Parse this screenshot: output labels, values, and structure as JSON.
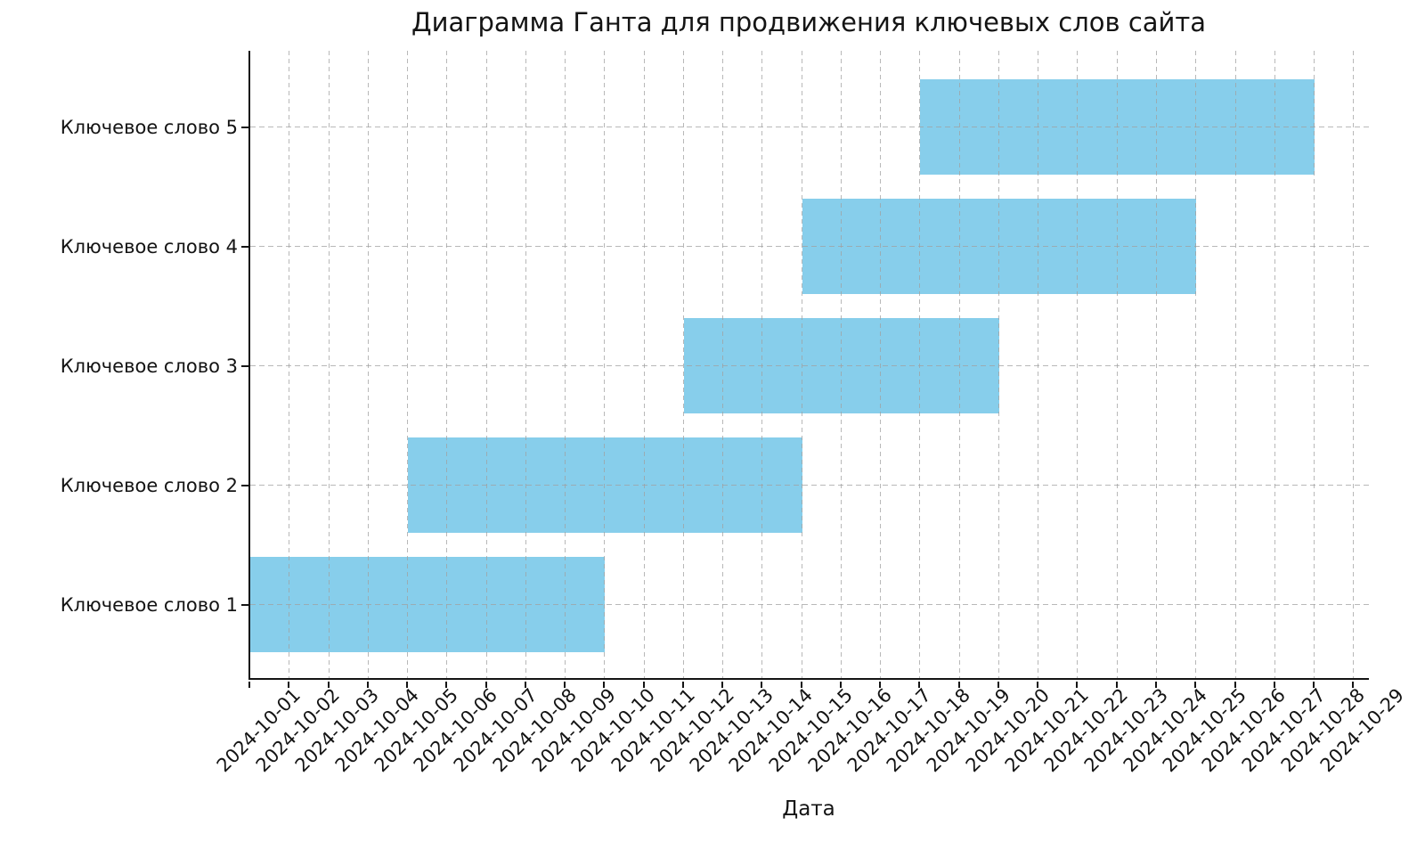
{
  "chart_data": {
    "type": "bar",
    "variant": "gantt-horizontal",
    "title": "Диаграмма Ганта для продвижения ключевых слов сайта",
    "xlabel": "Дата",
    "bar_color": "#87CEEB",
    "grid_color": "#b3b3b3",
    "axis_color": "#141414",
    "grid_style": "dashed",
    "legend": "none",
    "x_range": [
      "2024-10-01",
      "2024-10-29"
    ],
    "x_ticks": [
      "2024-10-01",
      "2024-10-02",
      "2024-10-03",
      "2024-10-04",
      "2024-10-05",
      "2024-10-06",
      "2024-10-07",
      "2024-10-08",
      "2024-10-09",
      "2024-10-10",
      "2024-10-11",
      "2024-10-12",
      "2024-10-13",
      "2024-10-14",
      "2024-10-15",
      "2024-10-16",
      "2024-10-17",
      "2024-10-18",
      "2024-10-19",
      "2024-10-20",
      "2024-10-21",
      "2024-10-22",
      "2024-10-23",
      "2024-10-24",
      "2024-10-25",
      "2024-10-26",
      "2024-10-27",
      "2024-10-28",
      "2024-10-29"
    ],
    "tasks_top_to_bottom": [
      {
        "label": "Ключевое слово 5",
        "start": "2024-10-18",
        "end": "2024-10-28"
      },
      {
        "label": "Ключевое слово 4",
        "start": "2024-10-15",
        "end": "2024-10-25"
      },
      {
        "label": "Ключевое слово 3",
        "start": "2024-10-12",
        "end": "2024-10-20"
      },
      {
        "label": "Ключевое слово 2",
        "start": "2024-10-05",
        "end": "2024-10-15"
      },
      {
        "label": "Ключевое слово 1",
        "start": "2024-10-01",
        "end": "2024-10-10"
      }
    ]
  }
}
